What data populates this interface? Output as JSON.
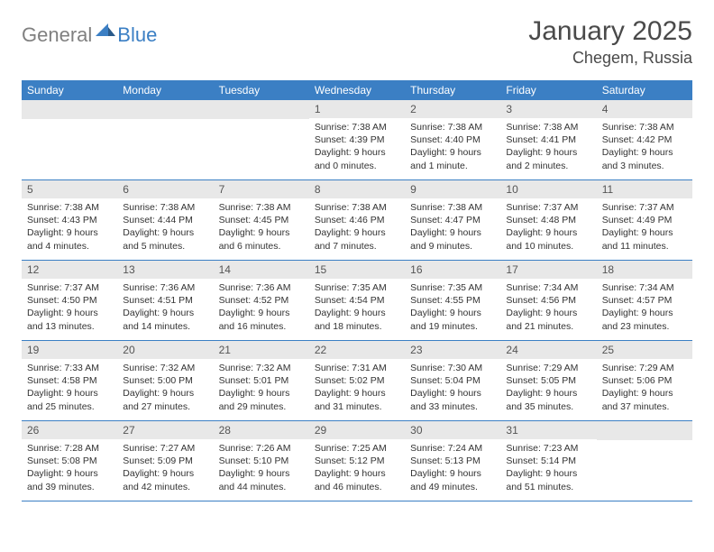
{
  "logo": {
    "text_gray": "General",
    "text_blue": "Blue"
  },
  "header": {
    "month_title": "January 2025",
    "location": "Chegem, Russia"
  },
  "colors": {
    "header_bar": "#3b7fc4",
    "daynum_bg": "#e8e8e8",
    "text": "#333333",
    "logo_gray": "#808080",
    "logo_blue": "#3b7fc4"
  },
  "weekdays": [
    "Sunday",
    "Monday",
    "Tuesday",
    "Wednesday",
    "Thursday",
    "Friday",
    "Saturday"
  ],
  "weeks": [
    [
      null,
      null,
      null,
      {
        "n": "1",
        "sr": "7:38 AM",
        "ss": "4:39 PM",
        "dl": "9 hours and 0 minutes."
      },
      {
        "n": "2",
        "sr": "7:38 AM",
        "ss": "4:40 PM",
        "dl": "9 hours and 1 minute."
      },
      {
        "n": "3",
        "sr": "7:38 AM",
        "ss": "4:41 PM",
        "dl": "9 hours and 2 minutes."
      },
      {
        "n": "4",
        "sr": "7:38 AM",
        "ss": "4:42 PM",
        "dl": "9 hours and 3 minutes."
      }
    ],
    [
      {
        "n": "5",
        "sr": "7:38 AM",
        "ss": "4:43 PM",
        "dl": "9 hours and 4 minutes."
      },
      {
        "n": "6",
        "sr": "7:38 AM",
        "ss": "4:44 PM",
        "dl": "9 hours and 5 minutes."
      },
      {
        "n": "7",
        "sr": "7:38 AM",
        "ss": "4:45 PM",
        "dl": "9 hours and 6 minutes."
      },
      {
        "n": "8",
        "sr": "7:38 AM",
        "ss": "4:46 PM",
        "dl": "9 hours and 7 minutes."
      },
      {
        "n": "9",
        "sr": "7:38 AM",
        "ss": "4:47 PM",
        "dl": "9 hours and 9 minutes."
      },
      {
        "n": "10",
        "sr": "7:37 AM",
        "ss": "4:48 PM",
        "dl": "9 hours and 10 minutes."
      },
      {
        "n": "11",
        "sr": "7:37 AM",
        "ss": "4:49 PM",
        "dl": "9 hours and 11 minutes."
      }
    ],
    [
      {
        "n": "12",
        "sr": "7:37 AM",
        "ss": "4:50 PM",
        "dl": "9 hours and 13 minutes."
      },
      {
        "n": "13",
        "sr": "7:36 AM",
        "ss": "4:51 PM",
        "dl": "9 hours and 14 minutes."
      },
      {
        "n": "14",
        "sr": "7:36 AM",
        "ss": "4:52 PM",
        "dl": "9 hours and 16 minutes."
      },
      {
        "n": "15",
        "sr": "7:35 AM",
        "ss": "4:54 PM",
        "dl": "9 hours and 18 minutes."
      },
      {
        "n": "16",
        "sr": "7:35 AM",
        "ss": "4:55 PM",
        "dl": "9 hours and 19 minutes."
      },
      {
        "n": "17",
        "sr": "7:34 AM",
        "ss": "4:56 PM",
        "dl": "9 hours and 21 minutes."
      },
      {
        "n": "18",
        "sr": "7:34 AM",
        "ss": "4:57 PM",
        "dl": "9 hours and 23 minutes."
      }
    ],
    [
      {
        "n": "19",
        "sr": "7:33 AM",
        "ss": "4:58 PM",
        "dl": "9 hours and 25 minutes."
      },
      {
        "n": "20",
        "sr": "7:32 AM",
        "ss": "5:00 PM",
        "dl": "9 hours and 27 minutes."
      },
      {
        "n": "21",
        "sr": "7:32 AM",
        "ss": "5:01 PM",
        "dl": "9 hours and 29 minutes."
      },
      {
        "n": "22",
        "sr": "7:31 AM",
        "ss": "5:02 PM",
        "dl": "9 hours and 31 minutes."
      },
      {
        "n": "23",
        "sr": "7:30 AM",
        "ss": "5:04 PM",
        "dl": "9 hours and 33 minutes."
      },
      {
        "n": "24",
        "sr": "7:29 AM",
        "ss": "5:05 PM",
        "dl": "9 hours and 35 minutes."
      },
      {
        "n": "25",
        "sr": "7:29 AM",
        "ss": "5:06 PM",
        "dl": "9 hours and 37 minutes."
      }
    ],
    [
      {
        "n": "26",
        "sr": "7:28 AM",
        "ss": "5:08 PM",
        "dl": "9 hours and 39 minutes."
      },
      {
        "n": "27",
        "sr": "7:27 AM",
        "ss": "5:09 PM",
        "dl": "9 hours and 42 minutes."
      },
      {
        "n": "28",
        "sr": "7:26 AM",
        "ss": "5:10 PM",
        "dl": "9 hours and 44 minutes."
      },
      {
        "n": "29",
        "sr": "7:25 AM",
        "ss": "5:12 PM",
        "dl": "9 hours and 46 minutes."
      },
      {
        "n": "30",
        "sr": "7:24 AM",
        "ss": "5:13 PM",
        "dl": "9 hours and 49 minutes."
      },
      {
        "n": "31",
        "sr": "7:23 AM",
        "ss": "5:14 PM",
        "dl": "9 hours and 51 minutes."
      },
      null
    ]
  ],
  "labels": {
    "sunrise": "Sunrise:",
    "sunset": "Sunset:",
    "daylight": "Daylight:"
  }
}
